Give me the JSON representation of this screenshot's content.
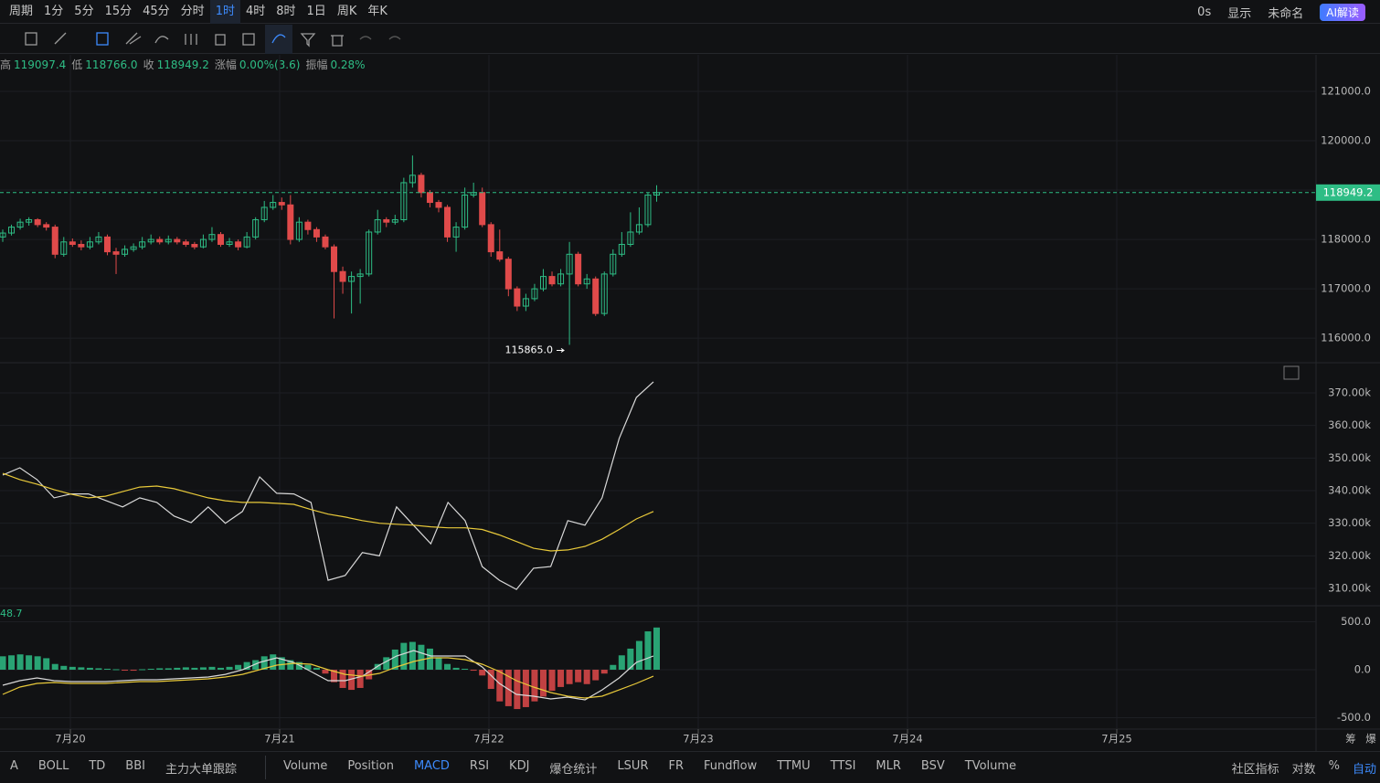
{
  "toolbar": {
    "periods": [
      "周期",
      "1分",
      "5分",
      "15分",
      "45分",
      "分时",
      "1时",
      "4时",
      "8时",
      "1日",
      "周K",
      "年K"
    ],
    "active_period": "1时",
    "right": [
      "0s",
      "显示",
      "未命名",
      "AI解读"
    ]
  },
  "info": [
    [
      "高",
      "119097.4"
    ],
    [
      "低",
      "118766.0"
    ],
    [
      "收",
      "118949.2"
    ],
    [
      "涨幅",
      "0.00%(3.6)"
    ],
    [
      "振幅",
      "0.28%"
    ]
  ],
  "xaxis": {
    "labels": [
      "7月20",
      "7月21",
      "7月22",
      "7月23",
      "7月24",
      "7月25"
    ],
    "corner": [
      "筹",
      "爆"
    ]
  },
  "chart_data": [
    {
      "type": "candlestick",
      "up_color": "#2ebd85",
      "down_color": "#e04a4a",
      "ylim": [
        115540,
        121740
      ],
      "yticks": [
        {
          "value": 121000,
          "label": "121000.0"
        },
        {
          "value": 120000,
          "label": "120000.0"
        },
        {
          "value": 119000,
          "label": "119000.0"
        },
        {
          "value": 118000,
          "label": "118000.0"
        },
        {
          "value": 117000,
          "label": "117000.0"
        },
        {
          "value": 116000,
          "label": "116000.0"
        }
      ],
      "last": 118949.2,
      "low": {
        "value": 115865,
        "label": "115865.0"
      },
      "candles": [
        [
          118050,
          118200,
          117950,
          118130
        ],
        [
          118130,
          118300,
          118080,
          118250
        ],
        [
          118250,
          118420,
          118200,
          118350
        ],
        [
          118350,
          118450,
          118280,
          118400
        ],
        [
          118400,
          118430,
          118250,
          118300
        ],
        [
          118300,
          118350,
          118180,
          118250
        ],
        [
          118250,
          118300,
          117620,
          117700
        ],
        [
          117700,
          118050,
          117650,
          117950
        ],
        [
          117950,
          118020,
          117850,
          117900
        ],
        [
          117900,
          117980,
          117780,
          117850
        ],
        [
          117850,
          118050,
          117800,
          117950
        ],
        [
          117950,
          118150,
          117900,
          118050
        ],
        [
          118050,
          118100,
          117680,
          117750
        ],
        [
          117750,
          117830,
          117300,
          117700
        ],
        [
          117700,
          117880,
          117650,
          117800
        ],
        [
          117800,
          117920,
          117750,
          117850
        ],
        [
          117850,
          118050,
          117800,
          117950
        ],
        [
          117950,
          118100,
          117900,
          118000
        ],
        [
          118000,
          118060,
          117900,
          117950
        ],
        [
          117950,
          118080,
          117900,
          118000
        ],
        [
          118000,
          118050,
          117900,
          117950
        ],
        [
          117950,
          118000,
          117850,
          117900
        ],
        [
          117900,
          117950,
          117800,
          117850
        ],
        [
          117850,
          118100,
          117820,
          118000
        ],
        [
          118000,
          118250,
          117950,
          118100
        ],
        [
          118100,
          118150,
          117850,
          117900
        ],
        [
          117900,
          118030,
          117850,
          117950
        ],
        [
          117950,
          118000,
          117780,
          117850
        ],
        [
          117850,
          118150,
          117820,
          118050
        ],
        [
          118050,
          118450,
          118000,
          118400
        ],
        [
          118400,
          118780,
          118350,
          118650
        ],
        [
          118650,
          118900,
          118600,
          118750
        ],
        [
          118750,
          118850,
          118600,
          118700
        ],
        [
          118700,
          118900,
          117900,
          118000
        ],
        [
          118000,
          118450,
          117950,
          118350
        ],
        [
          118350,
          118400,
          118100,
          118200
        ],
        [
          118200,
          118250,
          117950,
          118050
        ],
        [
          118050,
          118100,
          117800,
          117850
        ],
        [
          117850,
          117900,
          116400,
          117350
        ],
        [
          117350,
          117450,
          116900,
          117150
        ],
        [
          117150,
          117350,
          116500,
          117250
        ],
        [
          117250,
          117400,
          116700,
          117300
        ],
        [
          117300,
          118200,
          117250,
          118150
        ],
        [
          118150,
          118600,
          118100,
          118400
        ],
        [
          118400,
          118450,
          118250,
          118350
        ],
        [
          118350,
          118500,
          118300,
          118400
        ],
        [
          118400,
          119250,
          118350,
          119150
        ],
        [
          119150,
          119700,
          119050,
          119300
        ],
        [
          119300,
          119350,
          118850,
          118950
        ],
        [
          118950,
          119000,
          118650,
          118750
        ],
        [
          118750,
          118800,
          118550,
          118650
        ],
        [
          118650,
          118700,
          117950,
          118050
        ],
        [
          118050,
          118350,
          117750,
          118250
        ],
        [
          118250,
          119050,
          118200,
          118900
        ],
        [
          118900,
          119150,
          118850,
          118950
        ],
        [
          118950,
          119050,
          118250,
          118300
        ],
        [
          118300,
          118350,
          117650,
          117750
        ],
        [
          117750,
          118200,
          117550,
          117600
        ],
        [
          117600,
          117650,
          116850,
          117000
        ],
        [
          117000,
          117050,
          116550,
          116650
        ],
        [
          116650,
          116900,
          116550,
          116800
        ],
        [
          116800,
          117100,
          116750,
          117000
        ],
        [
          117000,
          117400,
          116950,
          117250
        ],
        [
          117250,
          117350,
          117050,
          117100
        ],
        [
          117100,
          117400,
          117050,
          117300
        ],
        [
          117300,
          117950,
          115865,
          117700
        ],
        [
          117700,
          117750,
          117050,
          117100
        ],
        [
          117100,
          117300,
          117000,
          117200
        ],
        [
          117200,
          117250,
          116450,
          116500
        ],
        [
          116500,
          117350,
          116450,
          117300
        ],
        [
          117300,
          117800,
          117250,
          117700
        ],
        [
          117700,
          118150,
          117650,
          117900
        ],
        [
          117900,
          118550,
          117850,
          118150
        ],
        [
          118150,
          118650,
          118100,
          118300
        ],
        [
          118300,
          118950,
          118250,
          118900
        ],
        [
          118900,
          119097.4,
          118766,
          118949.2
        ]
      ]
    },
    {
      "type": "line",
      "ylim": [
        304680,
        379250
      ],
      "yticks": [
        {
          "value": 370000,
          "label": "370.00k"
        },
        {
          "value": 360000,
          "label": "360.00k"
        },
        {
          "value": 350000,
          "label": "350.00k"
        },
        {
          "value": 340000,
          "label": "340.00k"
        },
        {
          "value": 330000,
          "label": "330.00k"
        },
        {
          "value": 320000,
          "label": "320.00k"
        },
        {
          "value": 310000,
          "label": "310.00k"
        }
      ],
      "series": [
        {
          "color": "#d9d9d9",
          "values": [
            344800,
            347000,
            343400,
            337800,
            339000,
            339000,
            337000,
            335000,
            337800,
            336400,
            332200,
            330200,
            335000,
            330000,
            333600,
            344200,
            339200,
            339000,
            336400,
            312500,
            314000,
            321000,
            320000,
            335000,
            329300,
            323700,
            336400,
            330800,
            316700,
            312500,
            309700,
            316200,
            316700,
            330800,
            329400,
            337800,
            356000,
            368600,
            373400
          ]
        },
        {
          "color": "#e8c93a",
          "values": [
            345300,
            343400,
            342000,
            340300,
            338900,
            337800,
            338300,
            339700,
            341100,
            341400,
            340600,
            339200,
            337800,
            336900,
            336400,
            336400,
            336100,
            335800,
            334200,
            332800,
            331900,
            330800,
            330000,
            329700,
            329400,
            328900,
            328600,
            328600,
            328100,
            326400,
            324400,
            322300,
            321500,
            321800,
            322900,
            325100,
            328100,
            331300,
            333600
          ]
        }
      ]
    },
    {
      "type": "macd",
      "readout": "48.7",
      "up_color": "#2ebd85",
      "down_color": "#e04a4a",
      "ylim": [
        -619,
        667
      ],
      "yticks": [
        {
          "value": 500,
          "label": "500.0"
        },
        {
          "value": 0,
          "label": "0.0"
        },
        {
          "value": -500,
          "label": "-500.0"
        }
      ],
      "histogram": [
        140,
        150,
        160,
        150,
        140,
        120,
        60,
        40,
        30,
        25,
        20,
        15,
        10,
        5,
        -5,
        -10,
        5,
        10,
        15,
        15,
        20,
        25,
        20,
        25,
        30,
        20,
        30,
        50,
        80,
        100,
        140,
        160,
        130,
        100,
        80,
        50,
        20,
        -40,
        -130,
        -190,
        -210,
        -190,
        -100,
        60,
        130,
        210,
        280,
        290,
        260,
        220,
        130,
        60,
        20,
        10,
        -10,
        -60,
        -200,
        -330,
        -380,
        -410,
        -390,
        -330,
        -280,
        -220,
        -180,
        -150,
        -130,
        -150,
        -110,
        -40,
        50,
        150,
        220,
        300,
        400,
        440
      ],
      "series": [
        {
          "color": "#d9d9d9",
          "values": [
            -162,
            -114,
            -86,
            -114,
            -124,
            -124,
            -124,
            -114,
            -105,
            -105,
            -95,
            -86,
            -76,
            -48,
            0,
            76,
            124,
            76,
            -19,
            -114,
            -114,
            -67,
            48,
            143,
            200,
            143,
            143,
            143,
            29,
            -143,
            -257,
            -276,
            -305,
            -286,
            -314,
            -210,
            -86,
            76,
            143
          ]
        },
        {
          "color": "#e8c93a",
          "values": [
            -257,
            -181,
            -143,
            -133,
            -143,
            -143,
            -143,
            -133,
            -124,
            -124,
            -114,
            -105,
            -95,
            -76,
            -48,
            0,
            48,
            67,
            57,
            0,
            -48,
            -67,
            -38,
            29,
            86,
            124,
            124,
            105,
            57,
            -19,
            -114,
            -181,
            -238,
            -276,
            -295,
            -276,
            -210,
            -143,
            -67
          ]
        }
      ]
    }
  ],
  "tabs": {
    "left": [
      "A",
      "BOLL",
      "TD",
      "BBI",
      "主力大单跟踪"
    ],
    "main": [
      "Volume",
      "Position",
      "MACD",
      "RSI",
      "KDJ",
      "爆仓统计",
      "LSUR",
      "FR",
      "Fundflow",
      "TTMU",
      "TTSI",
      "MLR",
      "BSV",
      "TVolume"
    ],
    "active": "MACD",
    "right": [
      "社区指标",
      "对数",
      "%",
      "自动"
    ]
  }
}
